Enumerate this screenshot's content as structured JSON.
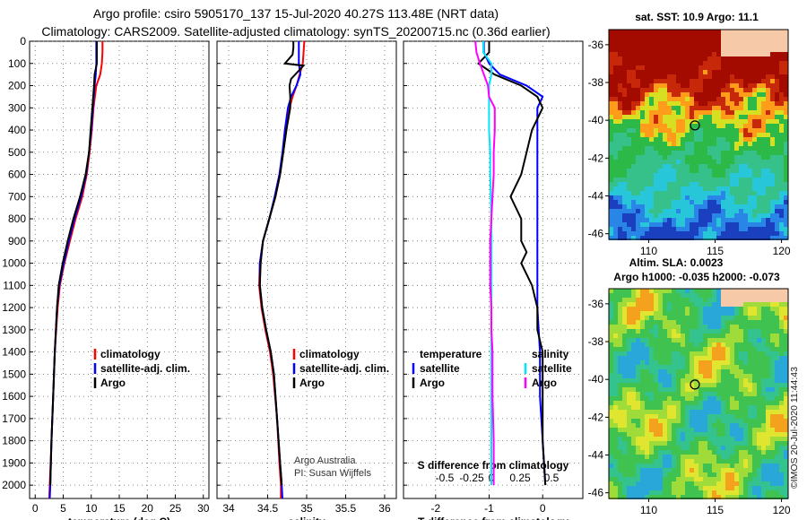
{
  "header": {
    "line1": "Argo profile: csiro 5905170_137 15-Jul-2020 40.27S 113.48E (NRT data)",
    "line2": "Climatology: CARS2009. Satellite-adjusted climatology: synTS_20200715.nc (0.36d earlier)"
  },
  "colors": {
    "argo": "#000000",
    "clim": "#ff0000",
    "satclim": "#0000ff",
    "sat_s": "#00e5ff",
    "sat_s_diff": "#ff00ff"
  },
  "chart_data": [
    {
      "type": "line",
      "id": "temperature",
      "xlabel": "temperature (deg C)",
      "xlim": [
        -1,
        31
      ],
      "ylim": [
        2060,
        0
      ],
      "xticks": [
        0,
        5,
        10,
        15,
        20,
        25,
        30
      ],
      "yticks": [
        0,
        100,
        200,
        300,
        400,
        500,
        600,
        700,
        800,
        900,
        1000,
        1100,
        1200,
        1300,
        1400,
        1500,
        1600,
        1700,
        1800,
        1900,
        2000
      ],
      "legend": {
        "position": "lower-left",
        "entries": [
          "climatology",
          "satellite-adj. clim.",
          "Argo"
        ]
      },
      "series": [
        {
          "name": "climatology",
          "depth": [
            0,
            50,
            100,
            150,
            200,
            300,
            400,
            500,
            600,
            700,
            800,
            900,
            1000,
            1100,
            1200,
            1400,
            1600,
            1800,
            2000,
            2060
          ],
          "values": [
            12.0,
            12.0,
            11.9,
            11.6,
            10.9,
            10.4,
            10.1,
            9.7,
            9.2,
            8.4,
            7.2,
            6.2,
            5.2,
            4.4,
            4.0,
            3.5,
            3.2,
            2.9,
            2.6,
            2.5
          ]
        },
        {
          "name": "satellite-adj. clim.",
          "depth": [
            0,
            50,
            100,
            150,
            200,
            300,
            400,
            500,
            600,
            700,
            800,
            900,
            1000,
            1100,
            1200,
            1400,
            1600,
            1800,
            2000,
            2060
          ],
          "values": [
            10.9,
            10.9,
            10.9,
            10.8,
            10.6,
            10.3,
            10.0,
            9.6,
            9.1,
            8.2,
            7.0,
            6.0,
            5.1,
            4.3,
            3.9,
            3.5,
            3.2,
            2.9,
            2.7,
            2.6
          ]
        },
        {
          "name": "Argo",
          "depth": [
            0,
            50,
            100,
            150,
            200,
            300,
            400,
            500,
            600,
            700,
            800,
            900,
            1000,
            1100,
            1200,
            1400,
            1600,
            1800,
            2000
          ],
          "values": [
            11.0,
            11.0,
            11.0,
            10.6,
            10.5,
            10.2,
            9.9,
            9.6,
            9.0,
            8.0,
            6.8,
            5.8,
            4.9,
            4.2,
            3.9,
            3.5,
            3.2,
            2.9,
            2.7
          ]
        }
      ]
    },
    {
      "type": "line",
      "id": "salinity",
      "xlabel": "salinity",
      "xlim": [
        33.85,
        36.15
      ],
      "ylim": [
        2060,
        0
      ],
      "xticks": [
        34,
        34.5,
        35,
        35.5,
        36
      ],
      "yticks": [],
      "legend": {
        "position": "lower-left",
        "entries": [
          "climatology",
          "satellite-adj. clim.",
          "Argo"
        ]
      },
      "annotation": [
        "Argo Australia",
        "PI: Susan Wijffels"
      ],
      "series": [
        {
          "name": "climatology",
          "depth": [
            0,
            100,
            150,
            200,
            250,
            300,
            400,
            500,
            600,
            700,
            800,
            900,
            1000,
            1100,
            1200,
            1300,
            1400,
            1500,
            1700,
            1900,
            2000,
            2060
          ],
          "values": [
            34.97,
            34.95,
            34.91,
            34.87,
            34.82,
            34.78,
            34.74,
            34.7,
            34.66,
            34.6,
            34.52,
            34.44,
            34.4,
            34.39,
            34.42,
            34.47,
            34.53,
            34.57,
            34.62,
            34.65,
            34.67,
            34.67
          ]
        },
        {
          "name": "satellite-adj. clim.",
          "depth": [
            0,
            100,
            150,
            200,
            250,
            300,
            400,
            500,
            600,
            700,
            800,
            900,
            1000,
            1100,
            1200,
            1300,
            1400,
            1500,
            1700,
            1900,
            2000,
            2060
          ],
          "values": [
            34.9,
            34.9,
            34.92,
            34.87,
            34.8,
            34.76,
            34.72,
            34.69,
            34.65,
            34.59,
            34.52,
            34.44,
            34.4,
            34.4,
            34.43,
            34.48,
            34.54,
            34.58,
            34.62,
            34.66,
            34.68,
            34.69
          ]
        },
        {
          "name": "Argo",
          "depth": [
            0,
            30,
            60,
            100,
            110,
            170,
            200,
            250,
            300,
            400,
            500,
            600,
            700,
            800,
            900,
            1000,
            1100,
            1200,
            1300,
            1400,
            1500,
            1700,
            1900,
            2000
          ],
          "values": [
            34.83,
            34.83,
            34.82,
            34.72,
            34.96,
            34.8,
            34.78,
            34.79,
            34.79,
            34.74,
            34.7,
            34.66,
            34.6,
            34.52,
            34.44,
            34.41,
            34.4,
            34.43,
            34.48,
            34.54,
            34.58,
            34.62,
            34.66,
            34.68
          ]
        }
      ]
    },
    {
      "type": "line",
      "id": "difference",
      "xlabel": "T difference from climatology",
      "xlim": [
        -2.6,
        0.75
      ],
      "ylim": [
        2060,
        0
      ],
      "xticks": [
        -2,
        -1,
        0
      ],
      "xticklabels": [
        "-2",
        "-1",
        "0"
      ],
      "top_axis": {
        "label": "S difference from climatology",
        "ticks": [
          "-0.5",
          "-0.25",
          "0",
          "0.25",
          "0.5"
        ]
      },
      "legend": {
        "position": "lower-left",
        "entries_temperature": [
          "temperature",
          "satellite",
          "Argo"
        ],
        "entries_salinity": [
          "salinity",
          "satellite",
          "Argo"
        ]
      },
      "series": [
        {
          "name": "temperature satellite",
          "depth": [
            0,
            50,
            100,
            150,
            200,
            250,
            300,
            400,
            600,
            800,
            1000,
            1200,
            1400,
            1600,
            1800,
            2000
          ],
          "values": [
            -1.1,
            -1.1,
            -1.0,
            -0.8,
            -0.3,
            0.0,
            -0.1,
            -0.1,
            -0.1,
            -0.1,
            -0.1,
            -0.1,
            -0.05,
            -0.05,
            0.0,
            0.05
          ]
        },
        {
          "name": "temperature Argo",
          "depth": [
            0,
            50,
            100,
            150,
            200,
            250,
            300,
            400,
            500,
            600,
            700,
            800,
            900,
            950,
            1000,
            1100,
            1200,
            1300,
            1400,
            1600,
            1800,
            2000
          ],
          "values": [
            -1.0,
            -1.0,
            -1.2,
            -0.9,
            -0.4,
            -0.1,
            0.0,
            -0.2,
            -0.3,
            -0.4,
            -0.6,
            -0.4,
            -0.4,
            -0.3,
            -0.4,
            -0.2,
            -0.1,
            -0.1,
            0.0,
            0.0,
            0.0,
            0.05
          ]
        },
        {
          "name": "salinity satellite",
          "depth": [
            0,
            50,
            100,
            150,
            200,
            300,
            400,
            500,
            600,
            800,
            1000,
            1200,
            1400,
            1600,
            1800,
            2000
          ],
          "values": [
            -0.07,
            -0.07,
            0.0,
            0.0,
            -0.02,
            -0.02,
            -0.02,
            -0.01,
            -0.01,
            0.0,
            0.0,
            0.0,
            0.0,
            0.0,
            0.0,
            0.0
          ]
        },
        {
          "name": "salinity Argo",
          "depth": [
            0,
            50,
            100,
            200,
            250,
            300,
            400,
            500,
            600,
            700,
            800,
            900,
            1000,
            1100,
            1200,
            1300,
            1400,
            1600,
            1800,
            2000
          ],
          "values": [
            -0.14,
            -0.13,
            -0.1,
            -0.03,
            -0.02,
            0.03,
            0.03,
            0.02,
            0.02,
            0.01,
            0.0,
            -0.01,
            -0.01,
            -0.01,
            0.0,
            0.0,
            0.01,
            0.01,
            0.02,
            0.02
          ]
        }
      ]
    },
    {
      "type": "heatmap",
      "id": "sst-map",
      "title": "sat. SST: 10.9 Argo: 11.1",
      "xticks": [
        110,
        115,
        120
      ],
      "yticks": [
        -36,
        -38,
        -40,
        -42,
        -44,
        -46
      ],
      "xlim": [
        107,
        120.5
      ],
      "ylim": [
        -46.3,
        -35.2
      ],
      "float_marker": {
        "lon": 113.48,
        "lat": -40.27
      }
    },
    {
      "type": "heatmap",
      "id": "sla-map",
      "title_line1": "Altim. SLA: 0.0023",
      "title_line2": "Argo h1000: -0.035 h2000: -0.073",
      "xticks": [
        110,
        115,
        120
      ],
      "yticks": [
        -36,
        -38,
        -40,
        -42,
        -44,
        -46
      ],
      "xlim": [
        107,
        120.5
      ],
      "ylim": [
        -46.3,
        -35.2
      ],
      "float_marker": {
        "lon": 113.48,
        "lat": -40.27
      }
    }
  ],
  "stamp": "©IMOS 20-Jul-2020 11:44:43"
}
